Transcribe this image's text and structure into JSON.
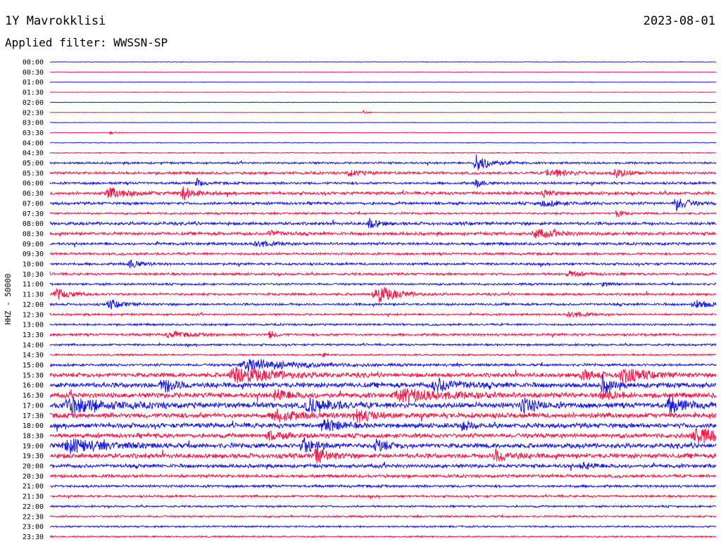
{
  "header": {
    "station": "1Y Mavrokklisi",
    "date": "2023-08-01",
    "filter": "Applied filter: WWSSN-SP"
  },
  "chart_data": {
    "type": "line",
    "ylabel": "HHZ - 50000",
    "row_labels": [
      "00:00",
      "00:30",
      "01:00",
      "01:30",
      "02:00",
      "02:30",
      "03:00",
      "03:30",
      "04:00",
      "04:30",
      "05:00",
      "05:30",
      "06:00",
      "06:30",
      "07:00",
      "07:30",
      "08:00",
      "08:30",
      "09:00",
      "09:30",
      "10:00",
      "10:30",
      "11:00",
      "11:30",
      "12:00",
      "12:30",
      "13:00",
      "13:30",
      "14:00",
      "14:30",
      "15:00",
      "15:30",
      "16:00",
      "16:30",
      "17:00",
      "17:30",
      "18:00",
      "18:30",
      "19:00",
      "19:30",
      "20:00",
      "20:30",
      "21:00",
      "21:30",
      "22:00",
      "22:30",
      "23:00",
      "23:30"
    ],
    "colors": [
      "#1a1adb",
      "#f0194a"
    ],
    "noise_level": [
      0.3,
      0.3,
      0.3,
      0.3,
      0.3,
      0.3,
      0.3,
      0.3,
      0.4,
      0.6,
      1.2,
      1.5,
      1.4,
      1.8,
      1.6,
      1.2,
      1.8,
      1.8,
      1.6,
      1.4,
      1.4,
      1.4,
      1.2,
      1.4,
      1.4,
      1.2,
      1.2,
      1.4,
      1.2,
      1.0,
      1.5,
      2.5,
      3.0,
      3.0,
      3.2,
      3.0,
      2.8,
      2.6,
      2.8,
      2.8,
      2.2,
      1.8,
      1.5,
      1.3,
      1.1,
      1.1,
      1.0,
      0.9
    ],
    "events": [
      {
        "row": 5,
        "t": 0.47,
        "amp": 3,
        "dur": 0.006
      },
      {
        "row": 7,
        "t": 0.09,
        "amp": 2,
        "dur": 0.008
      },
      {
        "row": 10,
        "t": 0.64,
        "amp": 12,
        "dur": 0.02
      },
      {
        "row": 11,
        "t": 0.75,
        "amp": 6,
        "dur": 0.03
      },
      {
        "row": 11,
        "t": 0.85,
        "amp": 6,
        "dur": 0.02
      },
      {
        "row": 11,
        "t": 0.45,
        "amp": 4,
        "dur": 0.02
      },
      {
        "row": 12,
        "t": 0.64,
        "amp": 6,
        "dur": 0.01
      },
      {
        "row": 12,
        "t": 0.22,
        "amp": 6,
        "dur": 0.008
      },
      {
        "row": 13,
        "t": 0.09,
        "amp": 7,
        "dur": 0.03
      },
      {
        "row": 13,
        "t": 0.2,
        "amp": 10,
        "dur": 0.015
      },
      {
        "row": 13,
        "t": 0.74,
        "amp": 5,
        "dur": 0.015
      },
      {
        "row": 14,
        "t": 0.94,
        "amp": 11,
        "dur": 0.015
      },
      {
        "row": 14,
        "t": 0.74,
        "amp": 4,
        "dur": 0.03
      },
      {
        "row": 15,
        "t": 0.85,
        "amp": 6,
        "dur": 0.008
      },
      {
        "row": 16,
        "t": 0.48,
        "amp": 8,
        "dur": 0.012
      },
      {
        "row": 17,
        "t": 0.73,
        "amp": 6,
        "dur": 0.03
      },
      {
        "row": 17,
        "t": 0.33,
        "amp": 5,
        "dur": 0.015
      },
      {
        "row": 18,
        "t": 0.31,
        "amp": 5,
        "dur": 0.02
      },
      {
        "row": 20,
        "t": 0.12,
        "amp": 6,
        "dur": 0.015
      },
      {
        "row": 21,
        "t": 0.78,
        "amp": 4,
        "dur": 0.02
      },
      {
        "row": 22,
        "t": 0.83,
        "amp": 5,
        "dur": 0.008
      },
      {
        "row": 23,
        "t": 0.01,
        "amp": 7,
        "dur": 0.02
      },
      {
        "row": 23,
        "t": 0.49,
        "amp": 14,
        "dur": 0.025
      },
      {
        "row": 24,
        "t": 0.09,
        "amp": 6,
        "dur": 0.02
      },
      {
        "row": 24,
        "t": 0.97,
        "amp": 5,
        "dur": 0.03
      },
      {
        "row": 25,
        "t": 0.78,
        "amp": 5,
        "dur": 0.02
      },
      {
        "row": 27,
        "t": 0.33,
        "amp": 6,
        "dur": 0.008
      },
      {
        "row": 27,
        "t": 0.18,
        "amp": 4,
        "dur": 0.03
      },
      {
        "row": 29,
        "t": 0.41,
        "amp": 3,
        "dur": 0.004
      },
      {
        "row": 30,
        "t": 0.3,
        "amp": 9,
        "dur": 0.06
      },
      {
        "row": 31,
        "t": 0.28,
        "amp": 12,
        "dur": 0.05
      },
      {
        "row": 31,
        "t": 0.86,
        "amp": 11,
        "dur": 0.03
      },
      {
        "row": 31,
        "t": 0.8,
        "amp": 7,
        "dur": 0.02
      },
      {
        "row": 32,
        "t": 0.17,
        "amp": 10,
        "dur": 0.02
      },
      {
        "row": 32,
        "t": 0.58,
        "amp": 9,
        "dur": 0.03
      },
      {
        "row": 32,
        "t": 0.83,
        "amp": 14,
        "dur": 0.01
      },
      {
        "row": 33,
        "t": 0.53,
        "amp": 8,
        "dur": 0.06
      },
      {
        "row": 33,
        "t": 0.34,
        "amp": 8,
        "dur": 0.02
      },
      {
        "row": 33,
        "t": 0.83,
        "amp": 9,
        "dur": 0.015
      },
      {
        "row": 34,
        "t": 0.03,
        "amp": 10,
        "dur": 0.05
      },
      {
        "row": 34,
        "t": 0.39,
        "amp": 10,
        "dur": 0.03
      },
      {
        "row": 34,
        "t": 0.71,
        "amp": 10,
        "dur": 0.02
      },
      {
        "row": 34,
        "t": 0.93,
        "amp": 11,
        "dur": 0.02
      },
      {
        "row": 35,
        "t": 0.34,
        "amp": 8,
        "dur": 0.03
      },
      {
        "row": 35,
        "t": 0.46,
        "amp": 11,
        "dur": 0.02
      },
      {
        "row": 36,
        "t": 0.41,
        "amp": 10,
        "dur": 0.02
      },
      {
        "row": 36,
        "t": 0.62,
        "amp": 8,
        "dur": 0.01
      },
      {
        "row": 37,
        "t": 0.97,
        "amp": 12,
        "dur": 0.03
      },
      {
        "row": 37,
        "t": 0.33,
        "amp": 6,
        "dur": 0.02
      },
      {
        "row": 38,
        "t": 0.03,
        "amp": 9,
        "dur": 0.05
      },
      {
        "row": 38,
        "t": 0.38,
        "amp": 10,
        "dur": 0.02
      },
      {
        "row": 38,
        "t": 0.49,
        "amp": 9,
        "dur": 0.015
      },
      {
        "row": 39,
        "t": 0.4,
        "amp": 10,
        "dur": 0.02
      },
      {
        "row": 39,
        "t": 0.67,
        "amp": 9,
        "dur": 0.02
      },
      {
        "row": 40,
        "t": 0.8,
        "amp": 4,
        "dur": 0.02
      }
    ]
  }
}
